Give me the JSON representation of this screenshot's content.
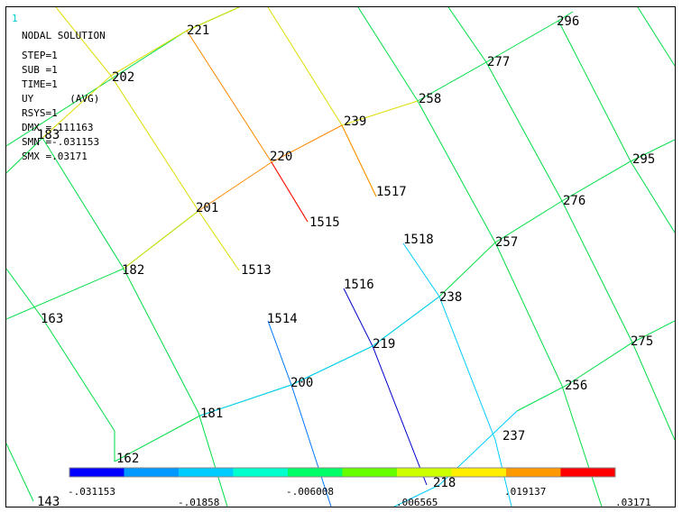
{
  "window_number": "1",
  "header": {
    "title": "NODAL SOLUTION",
    "step": "STEP=1",
    "sub": "SUB =1",
    "time": "TIME=1",
    "item": "UY",
    "avg": "(AVG)",
    "rsys": "RSYS=1",
    "dmx": "DMX =.111163",
    "smn": "SMN =-.031153",
    "smx": "SMX =.03171"
  },
  "legend": {
    "colors": [
      "#0000ff",
      "#0099ff",
      "#00ccff",
      "#00ffcc",
      "#00ff66",
      "#66ff00",
      "#ccff00",
      "#ffee00",
      "#ff9900",
      "#ff0000"
    ],
    "labels_bottom": [
      "-.031153",
      "-.006008",
      ".019137"
    ],
    "labels_top": [
      "-.01858",
      ".006565",
      ".03171"
    ]
  },
  "nodes": [
    {
      "label": "221"
    },
    {
      "label": "202"
    },
    {
      "label": "183"
    },
    {
      "label": "239"
    },
    {
      "label": "220"
    },
    {
      "label": "201"
    },
    {
      "label": "182"
    },
    {
      "label": "163"
    },
    {
      "label": "1517"
    },
    {
      "label": "1515"
    },
    {
      "label": "1513"
    },
    {
      "label": "1518"
    },
    {
      "label": "1516"
    },
    {
      "label": "1514"
    },
    {
      "label": "296"
    },
    {
      "label": "277"
    },
    {
      "label": "258"
    },
    {
      "label": "295"
    },
    {
      "label": "276"
    },
    {
      "label": "257"
    },
    {
      "label": "238"
    },
    {
      "label": "219"
    },
    {
      "label": "200"
    },
    {
      "label": "181"
    },
    {
      "label": "162"
    },
    {
      "label": "143"
    },
    {
      "label": "275"
    },
    {
      "label": "256"
    },
    {
      "label": "237"
    },
    {
      "label": "218"
    }
  ]
}
